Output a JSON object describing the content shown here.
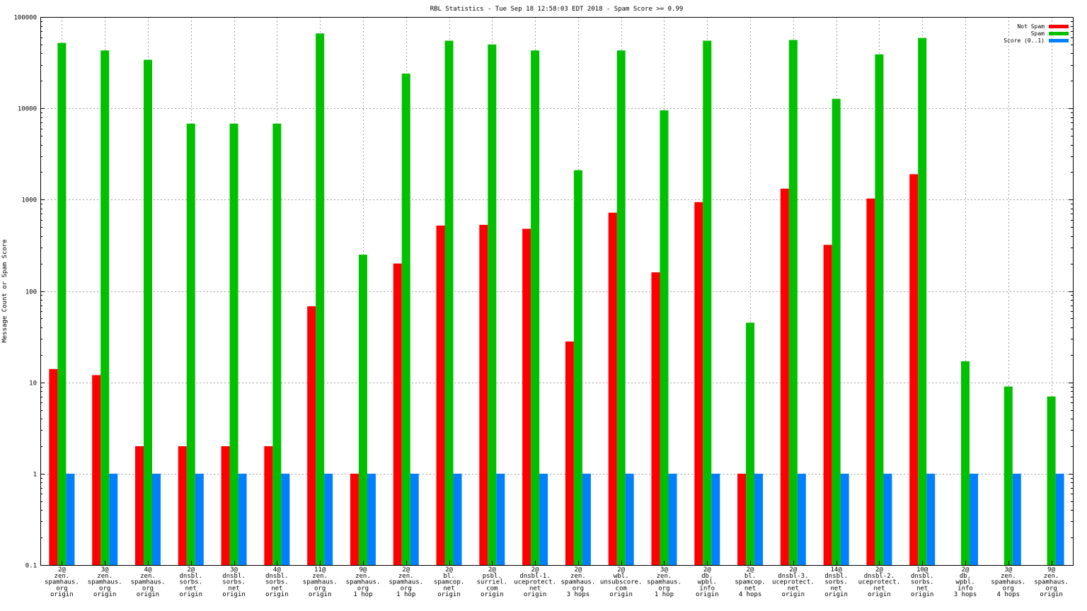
{
  "chart_data": {
    "type": "bar",
    "title": "RBL Statistics - Tue Sep 18 12:58:03 EDT 2018 - Spam Score >= 0.99",
    "xlabel": "",
    "ylabel": "Message Count or Spam Score",
    "yscale": "log",
    "ylim": [
      0.1,
      100000
    ],
    "ytick_values": [
      0.1,
      1,
      10,
      100,
      1000,
      10000,
      100000
    ],
    "ytick_labels": [
      "0.1",
      "1",
      "10",
      "100",
      "1000",
      "10000",
      "100000"
    ],
    "grid": true,
    "legend_position": "top-right",
    "categories": [
      [
        "2@",
        "zen.",
        "spamhaus.",
        "org",
        "origin"
      ],
      [
        "3@",
        "zen.",
        "spamhaus.",
        "org",
        "origin"
      ],
      [
        "4@",
        "zen.",
        "spamhaus.",
        "org",
        "origin"
      ],
      [
        "2@",
        "dnsbl.",
        "sorbs.",
        "net",
        "origin"
      ],
      [
        "3@",
        "dnsbl.",
        "sorbs.",
        "net",
        "origin"
      ],
      [
        "4@",
        "dnsbl.",
        "sorbs.",
        "net",
        "origin"
      ],
      [
        "11@",
        "zen.",
        "spamhaus.",
        "org",
        "origin"
      ],
      [
        "9@",
        "zen.",
        "spamhaus.",
        "org",
        "1 hop"
      ],
      [
        "2@",
        "zen.",
        "spamhaus.",
        "org",
        "1 hop"
      ],
      [
        "2@",
        "bl.",
        "spamcop.",
        "net",
        "origin"
      ],
      [
        "2@",
        "psbl.",
        "surriel.",
        "com",
        "origin"
      ],
      [
        "2@",
        "dnsbl-1.",
        "uceprotect.",
        "net",
        "origin"
      ],
      [
        "2@",
        "zen.",
        "spamhaus.",
        "org",
        "3 hops"
      ],
      [
        "2@",
        "wbl.",
        "unsubscore.",
        "com",
        "origin"
      ],
      [
        "3@",
        "zen.",
        "spamhaus.",
        "org",
        "1 hop"
      ],
      [
        "2@",
        "db.",
        "wpbl.",
        "info",
        "origin"
      ],
      [
        "2@",
        "bl.",
        "spamcop.",
        "net",
        "4 hops"
      ],
      [
        "2@",
        "dnsbl-3.",
        "uceprotect.",
        "net",
        "origin"
      ],
      [
        "14@",
        "dnsbl.",
        "sorbs.",
        "net",
        "origin"
      ],
      [
        "2@",
        "dnsbl-2.",
        "uceprotect.",
        "net",
        "origin"
      ],
      [
        "10@",
        "dnsbl.",
        "sorbs.",
        "net",
        "origin"
      ],
      [
        "2@",
        "db.",
        "wpbl.",
        "info",
        "3 hops"
      ],
      [
        "3@",
        "zen.",
        "spamhaus.",
        "org",
        "4 hops"
      ],
      [
        "9@",
        "zen.",
        "spamhaus.",
        "org",
        "origin"
      ]
    ],
    "series": [
      {
        "name": "Not Spam",
        "color": "#ff0000",
        "values": [
          14,
          12,
          2,
          2,
          2,
          2,
          68,
          1,
          200,
          520,
          530,
          480,
          28,
          720,
          160,
          940,
          1,
          1320,
          320,
          1030,
          1900,
          null,
          null,
          null
        ]
      },
      {
        "name": "Spam",
        "color": "#00c000",
        "values": [
          52000,
          43000,
          34000,
          6800,
          6800,
          6800,
          66000,
          250,
          24000,
          55000,
          50000,
          43000,
          2100,
          43000,
          9500,
          55000,
          45,
          56000,
          12700,
          39000,
          59000,
          17,
          9,
          7
        ]
      },
      {
        "name": "Score (0..1)",
        "color": "#0080ff",
        "values": [
          1,
          1,
          1,
          1,
          1,
          1,
          1,
          1,
          1,
          1,
          1,
          1,
          1,
          1,
          1,
          1,
          1,
          1,
          1,
          1,
          1,
          1,
          1,
          1
        ]
      }
    ]
  }
}
